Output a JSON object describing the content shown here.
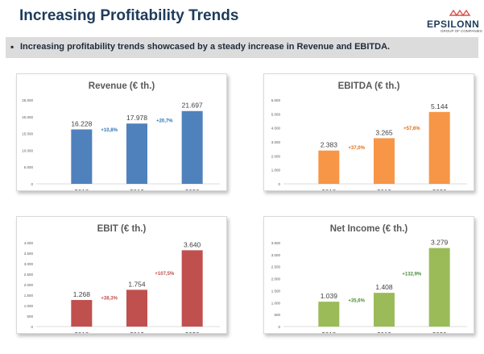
{
  "header": {
    "title": "Increasing Profitability Trends",
    "logo_name": "EPSILONN",
    "logo_sub": "GROUP OF COMPANIES"
  },
  "banner": {
    "bullet": "▪",
    "text": "Increasing profitability trends showcased by a steady increase in Revenue and EBITDA."
  },
  "chart_data": [
    {
      "type": "bar",
      "title": "Revenue (€ th.)",
      "categories": [
        "2018",
        "2019",
        "2020"
      ],
      "values": [
        16228,
        17978,
        21697
      ],
      "value_labels": [
        "16.228",
        "17.978",
        "21.697"
      ],
      "growth_labels": [
        "+10,8%",
        "+20,7%"
      ],
      "ylim": [
        0,
        25000
      ],
      "yticks": [
        0,
        5000,
        10000,
        15000,
        20000,
        25000
      ],
      "ytick_labels": [
        "0",
        "5.000",
        "10.000",
        "15.000",
        "20.000",
        "25.000"
      ],
      "color": "#4f81bd",
      "growth_color": "#2e75b6",
      "grid": false,
      "legend": "none"
    },
    {
      "type": "bar",
      "title": "EBITDA (€ th.)",
      "categories": [
        "2018",
        "2019",
        "2020"
      ],
      "values": [
        2383,
        3265,
        5144
      ],
      "value_labels": [
        "2.383",
        "3.265",
        "5.144"
      ],
      "growth_labels": [
        "+37,0%",
        "+57,6%"
      ],
      "ylim": [
        0,
        6000
      ],
      "yticks": [
        0,
        1000,
        2000,
        3000,
        4000,
        5000,
        6000
      ],
      "ytick_labels": [
        "0",
        "1.000",
        "2.000",
        "3.000",
        "4.000",
        "5.000",
        "6.000"
      ],
      "color": "#f79646",
      "growth_color": "#e46c0a",
      "grid": false,
      "legend": "none"
    },
    {
      "type": "bar",
      "title": "EBIT (€ th.)",
      "categories": [
        "2018",
        "2019",
        "2020"
      ],
      "values": [
        1268,
        1754,
        3640
      ],
      "value_labels": [
        "1.268",
        "1.754",
        "3.640"
      ],
      "growth_labels": [
        "+38,3%",
        "+107,5%"
      ],
      "ylim": [
        0,
        4000
      ],
      "yticks": [
        0,
        500,
        1000,
        1500,
        2000,
        2500,
        3000,
        3500,
        4000
      ],
      "ytick_labels": [
        "0",
        "500",
        "1.000",
        "1.500",
        "2.000",
        "2.500",
        "3.000",
        "3.500",
        "4.000"
      ],
      "color": "#c0504d",
      "growth_color": "#c0504d",
      "grid": false,
      "legend": "none"
    },
    {
      "type": "bar",
      "title": "Net Income (€ th.)",
      "categories": [
        "2018",
        "2019",
        "2020"
      ],
      "values": [
        1039,
        1408,
        3279
      ],
      "value_labels": [
        "1.039",
        "1.408",
        "3.279"
      ],
      "growth_labels": [
        "+35,6%",
        "+132,9%"
      ],
      "ylim": [
        0,
        3500
      ],
      "yticks": [
        0,
        500,
        1000,
        1500,
        2000,
        2500,
        3000,
        3500
      ],
      "ytick_labels": [
        "0",
        "500",
        "1.000",
        "1.500",
        "2.000",
        "2.500",
        "3.000",
        "3.500"
      ],
      "color": "#9bbb59",
      "growth_color": "#4e8a3a",
      "grid": false,
      "legend": "none"
    }
  ]
}
